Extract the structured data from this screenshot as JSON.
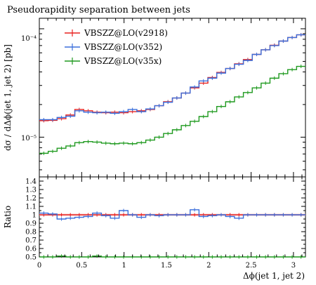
{
  "chart_data": {
    "type": "line",
    "title": "Pseudorapidity separation between jets",
    "xlabel": "Δϕ(jet 1, jet 2)",
    "ylabel": "dσ / dΔϕ(jet 1, jet 2) [pb]",
    "ratio_ylabel": "Ratio",
    "xlim": [
      0,
      3.1416
    ],
    "ylim": [
      4.3e-06,
      0.000125
    ],
    "yscale": "log",
    "ratio_ylim": [
      0.5,
      1.45
    ],
    "x_ticks": [
      0,
      0.5,
      1,
      1.5,
      2,
      2.5,
      3
    ],
    "x_tick_labels": [
      "0",
      "0.5",
      "1",
      "1.5",
      "2",
      "2.5",
      "3"
    ],
    "y_tick_labels": [
      "10⁻⁵",
      "10⁻⁴"
    ],
    "ratio_ticks": [
      0.5,
      0.6,
      0.7,
      0.8,
      0.9,
      1.0,
      1.1,
      1.2,
      1.3,
      1.4
    ],
    "ratio_tick_labels": [
      "0.5",
      "0.6",
      "0.7",
      "0.8",
      "0.9",
      "1",
      "1.1",
      "1.2",
      "1.3",
      "1.4"
    ],
    "legend_position": "top-left",
    "bin_edges": [
      0,
      0.1047,
      0.2094,
      0.3142,
      0.4189,
      0.5236,
      0.6283,
      0.733,
      0.8378,
      0.9425,
      1.0472,
      1.1519,
      1.2566,
      1.3614,
      1.4661,
      1.5708,
      1.6755,
      1.7802,
      1.885,
      1.9897,
      2.0944,
      2.1991,
      2.3038,
      2.4086,
      2.5133,
      2.618,
      2.7227,
      2.8274,
      2.9322,
      3.0369,
      3.1416
    ],
    "series": [
      {
        "name": "VBSZZ@LO(v2918)",
        "color": "#e8211f",
        "values": [
          1.42e-05,
          1.43e-05,
          1.48e-05,
          1.6e-05,
          1.8e-05,
          1.75e-05,
          1.7e-05,
          1.68e-05,
          1.7e-05,
          1.68e-05,
          1.72e-05,
          1.75e-05,
          1.8e-05,
          1.95e-05,
          2.12e-05,
          2.3e-05,
          2.55e-05,
          2.85e-05,
          3.15e-05,
          3.55e-05,
          3.95e-05,
          4.3e-05,
          4.75e-05,
          5.2e-05,
          5.8e-05,
          6.4e-05,
          7.05e-05,
          7.7e-05,
          8.3e-05,
          8.8e-05
        ]
      },
      {
        "name": "VBSZZ@LO(v352)",
        "color": "#3b6fdb",
        "values": [
          1.45e-05,
          1.45e-05,
          1.52e-05,
          1.56e-05,
          1.75e-05,
          1.7e-05,
          1.68e-05,
          1.7e-05,
          1.66e-05,
          1.72e-05,
          1.8e-05,
          1.72e-05,
          1.82e-05,
          1.95e-05,
          2.1e-05,
          2.3e-05,
          2.55e-05,
          2.9e-05,
          3.3e-05,
          3.5e-05,
          3.9e-05,
          4.3e-05,
          4.7e-05,
          5.1e-05,
          5.8e-05,
          6.4e-05,
          7e-05,
          7.7e-05,
          8.3e-05,
          8.8e-05
        ]
      },
      {
        "name": "VBSZZ@LO(v35x)",
        "color": "#1f9a1f",
        "values": [
          7.1e-06,
          7.4e-06,
          7.9e-06,
          8.3e-06,
          8.9e-06,
          9.1e-06,
          9e-06,
          8.8e-06,
          8.7e-06,
          8.8e-06,
          8.7e-06,
          8.9e-06,
          9.4e-06,
          1e-05,
          1.08e-05,
          1.17e-05,
          1.28e-05,
          1.4e-05,
          1.55e-05,
          1.72e-05,
          1.92e-05,
          2.12e-05,
          2.35e-05,
          2.58e-05,
          2.85e-05,
          3.15e-05,
          3.5e-05,
          3.85e-05,
          4.2e-05,
          4.5e-05
        ]
      }
    ],
    "ratio_series": [
      {
        "name": "VBSZZ@LO(v2918)",
        "color": "#e8211f",
        "values": [
          1.0,
          1.0,
          1.0,
          1.0,
          1.0,
          1.0,
          1.0,
          1.0,
          1.0,
          1.0,
          1.0,
          1.0,
          1.0,
          1.0,
          1.0,
          1.0,
          1.0,
          1.0,
          1.0,
          1.0,
          1.0,
          1.0,
          1.0,
          1.0,
          1.0,
          1.0,
          1.0,
          1.0,
          1.0,
          1.0
        ]
      },
      {
        "name": "VBSZZ@LO(v352)",
        "color": "#3b6fdb",
        "values": [
          1.02,
          1.01,
          0.95,
          0.96,
          0.97,
          0.98,
          1.02,
          0.99,
          0.96,
          1.05,
          1.0,
          0.97,
          1.0,
          0.99,
          1.0,
          1.0,
          1.0,
          1.06,
          0.98,
          0.99,
          1.0,
          0.98,
          0.96,
          1.0,
          1.0,
          1.0,
          1.0,
          1.0,
          1.0,
          1.0
        ]
      },
      {
        "name": "VBSZZ@LO(v35x)",
        "color": "#1f9a1f",
        "values": [
          0.5,
          0.5,
          0.51,
          0.5,
          0.5,
          0.5,
          0.51,
          0.5,
          0.5,
          0.5,
          0.49,
          0.5,
          0.5,
          0.5,
          0.5,
          0.5,
          0.5,
          0.5,
          0.5,
          0.5,
          0.49,
          0.5,
          0.5,
          0.5,
          0.5,
          0.49,
          0.5,
          0.5,
          0.5,
          0.5
        ]
      }
    ]
  }
}
